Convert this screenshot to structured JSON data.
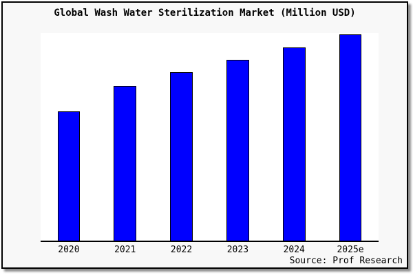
{
  "card": {
    "background": "#f8f8f8",
    "border_color": "#000000"
  },
  "chart_data": {
    "type": "bar",
    "title": "Global Wash Water Sterilization Market (Million USD)",
    "categories": [
      "2020",
      "2021",
      "2022",
      "2023",
      "2024",
      "2025e"
    ],
    "values": [
      62.3,
      74.5,
      81.1,
      87.1,
      93.0,
      99.3
    ],
    "values_unit": "relative height (y-axis unlabeled, estimated from pixels)",
    "xlabel": "",
    "ylabel": "",
    "ylim": [
      0,
      100
    ],
    "grid": false,
    "legend": null,
    "bar_color": "#0000ff",
    "bar_edge_color": "#000000",
    "plot_background": "#ffffff",
    "source": "Source: Prof Research"
  }
}
